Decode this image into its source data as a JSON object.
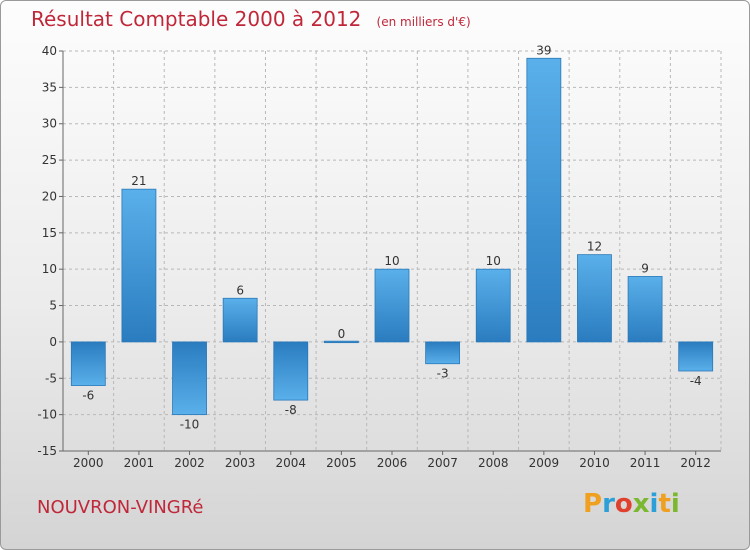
{
  "chart_data": {
    "type": "bar",
    "title": "Résultat Comptable 2000 à 2012",
    "unit_note": "(en milliers d'€)",
    "xlabel": "",
    "ylabel": "",
    "ylim": [
      -15,
      40
    ],
    "yticks": [
      40,
      35,
      30,
      25,
      20,
      15,
      10,
      5,
      0,
      -5,
      -10,
      -15
    ],
    "grid": true,
    "categories": [
      "2000",
      "2001",
      "2002",
      "2003",
      "2004",
      "2005",
      "2006",
      "2007",
      "2008",
      "2009",
      "2010",
      "2011",
      "2012"
    ],
    "values": [
      -6,
      21,
      -10,
      6,
      -8,
      0,
      10,
      -3,
      10,
      39,
      12,
      9,
      -4
    ],
    "bar_color_light": "#5ab0ea",
    "bar_color_dark": "#2a7cbf"
  },
  "commune": "NOUVRON-VINGRé",
  "logo": {
    "letters": [
      "P",
      "r",
      "o",
      "x",
      "i",
      "t",
      "i"
    ],
    "colors": [
      "#f0a020",
      "#2d9fd8",
      "#e0412e",
      "#7cb82f",
      "#2d9fd8",
      "#f0a020",
      "#7cb82f"
    ]
  },
  "colors": {
    "title": "#c0283a",
    "axis_text": "#333333",
    "grid": "#b8b8b8"
  }
}
